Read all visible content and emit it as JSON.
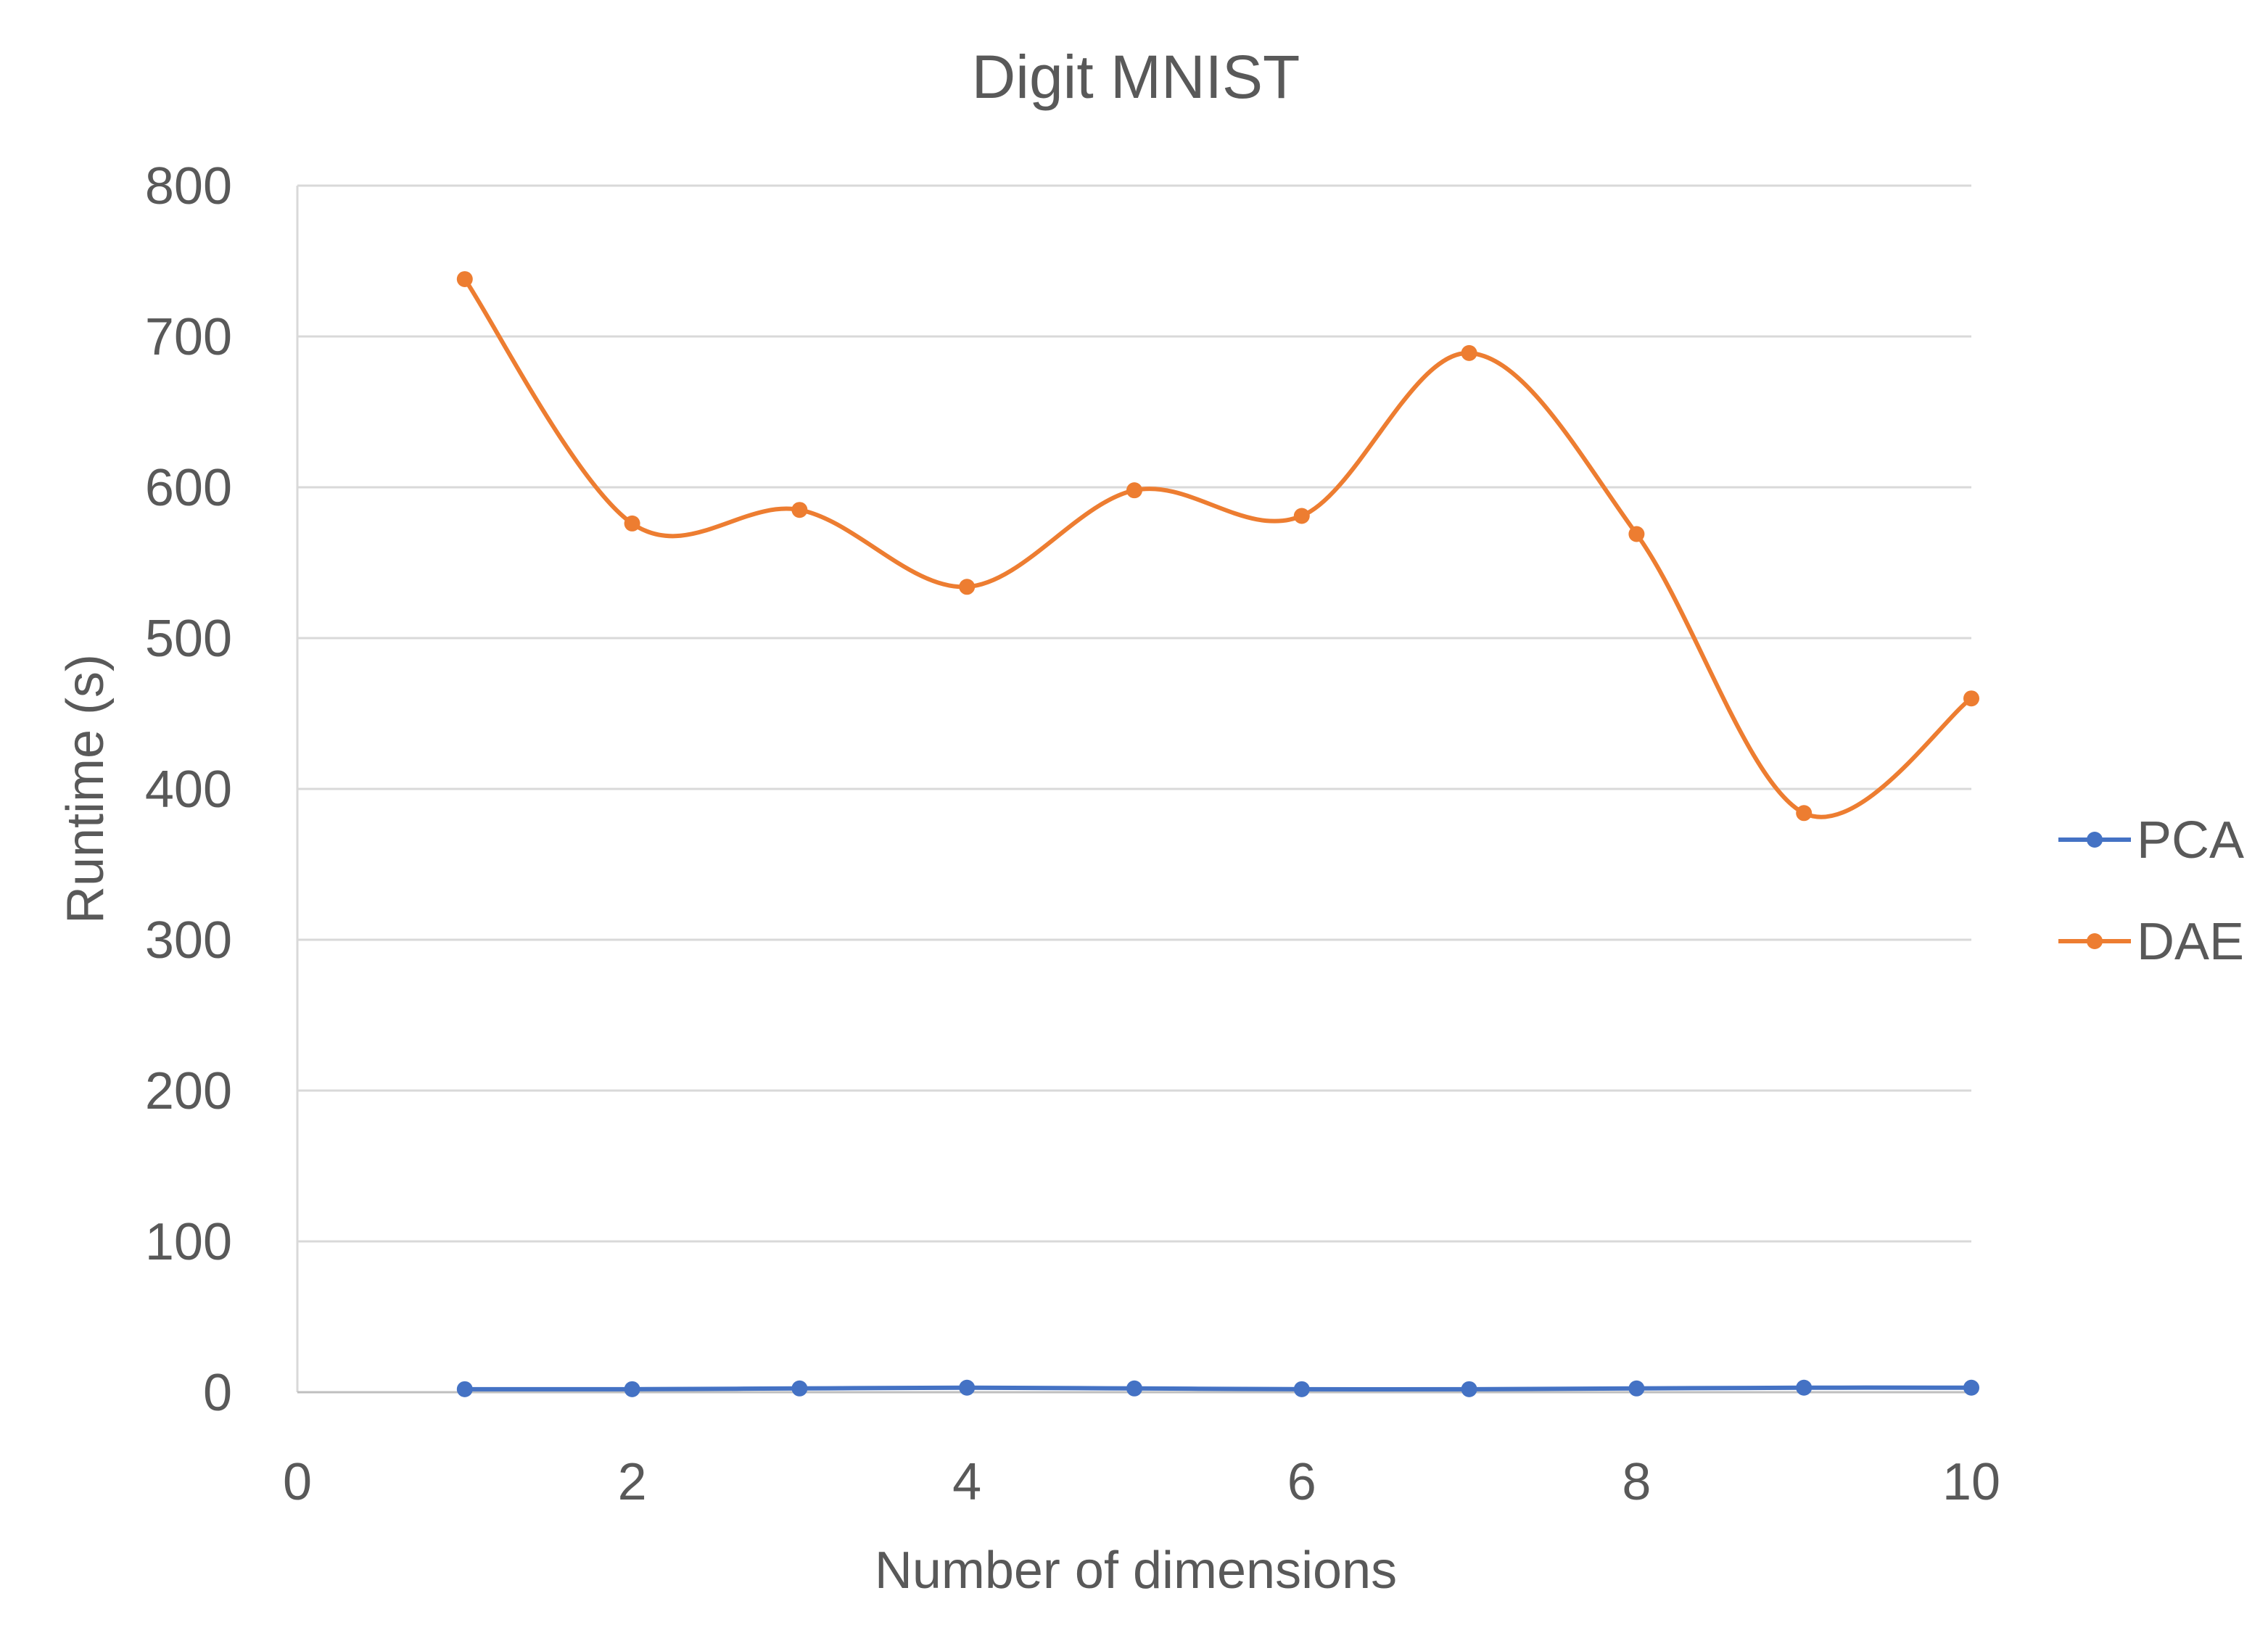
{
  "chart_data": {
    "type": "line",
    "title": "Digit MNIST",
    "xlabel": "Number of dimensions",
    "ylabel": "Runtime (s)",
    "xlim": [
      0,
      10
    ],
    "ylim": [
      0,
      800
    ],
    "xticks": [
      "0",
      "2",
      "4",
      "6",
      "8",
      "10"
    ],
    "yticks": [
      "0",
      "100",
      "200",
      "300",
      "400",
      "500",
      "600",
      "700",
      "800"
    ],
    "grid": "horizontal",
    "legend_position": "right",
    "smooth": true,
    "x": [
      1,
      2,
      3,
      4,
      5,
      6,
      7,
      8,
      9,
      10
    ],
    "series": [
      {
        "name": "PCA",
        "color": "#4472C4",
        "values": [
          2,
          2,
          2.5,
          3,
          2.5,
          2,
          2,
          2.5,
          3,
          3
        ]
      },
      {
        "name": "DAE",
        "color": "#ED7D31",
        "values": [
          738,
          576,
          585,
          534,
          598,
          581,
          689,
          569,
          384,
          460
        ]
      }
    ]
  }
}
